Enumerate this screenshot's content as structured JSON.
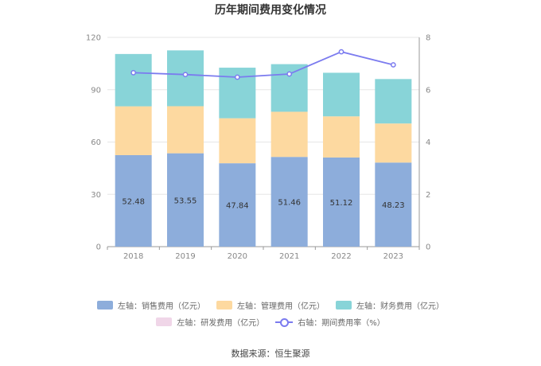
{
  "title": "历年期间费用变化情况",
  "source": "数据来源：恒生聚源",
  "colors": {
    "sales": "#8daddb",
    "admin": "#fdd9a0",
    "finance": "#88d4d8",
    "rnd": "#f0d6e8",
    "rate": "#7b7bef"
  },
  "legend": [
    {
      "label": "左轴：销售费用（亿元）",
      "key": "sales",
      "kind": "bar"
    },
    {
      "label": "左轴：管理费用（亿元）",
      "key": "admin",
      "kind": "bar"
    },
    {
      "label": "左轴：财务费用（亿元）",
      "key": "finance",
      "kind": "bar"
    },
    {
      "label": "左轴：研发费用（亿元）",
      "key": "rnd",
      "kind": "bar"
    },
    {
      "label": "右轴：期间费用率（%）",
      "key": "rate",
      "kind": "line"
    }
  ],
  "chart_data": {
    "type": "bar",
    "stacked": true,
    "categories": [
      "2018",
      "2019",
      "2020",
      "2021",
      "2022",
      "2023"
    ],
    "left_axis": {
      "min": 0,
      "max": 120,
      "ticks": [
        0,
        30,
        60,
        90,
        120
      ]
    },
    "right_axis": {
      "min": 0,
      "max": 8,
      "ticks": [
        0,
        2,
        4,
        6,
        8
      ]
    },
    "series": [
      {
        "name": "左轴：销售费用（亿元）",
        "key": "sales",
        "axis": "left",
        "type": "bar",
        "values": [
          52.48,
          53.55,
          47.84,
          51.46,
          51.12,
          48.23
        ],
        "show_labels": true
      },
      {
        "name": "左轴：管理费用（亿元）",
        "key": "admin",
        "axis": "left",
        "type": "bar",
        "values": [
          28.0,
          27.0,
          25.8,
          25.9,
          23.6,
          22.4
        ]
      },
      {
        "name": "左轴：财务费用（亿元）",
        "key": "finance",
        "axis": "left",
        "type": "bar",
        "values": [
          30.0,
          32.0,
          29.0,
          27.3,
          25.0,
          25.5
        ]
      },
      {
        "name": "左轴：研发费用（亿元）",
        "key": "rnd",
        "axis": "left",
        "type": "bar",
        "values": [
          0,
          0,
          0,
          0,
          0,
          0
        ]
      },
      {
        "name": "右轴：期间费用率（%）",
        "key": "rate",
        "axis": "right",
        "type": "line",
        "values": [
          6.65,
          6.58,
          6.48,
          6.6,
          7.45,
          6.95
        ]
      }
    ],
    "grid": true,
    "legend_position": "bottom"
  }
}
